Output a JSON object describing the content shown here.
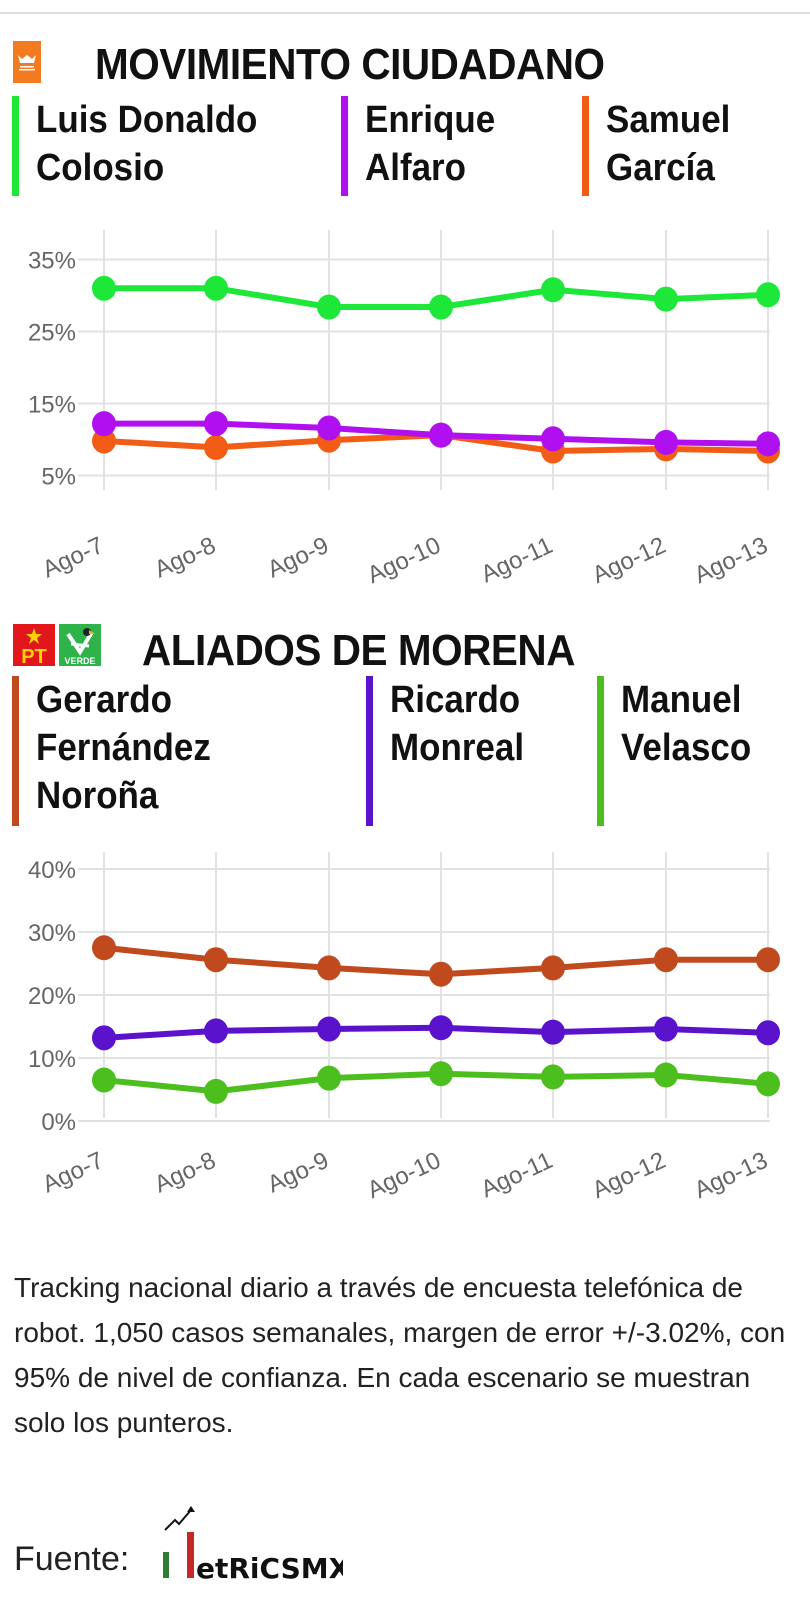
{
  "sections": [
    {
      "title": "MOVIMIENTO CIUDADANO",
      "logo": "movimiento-ciudadano-logo",
      "legend": [
        {
          "label": "Luis Donaldo\nColosio",
          "color": "#1de83a"
        },
        {
          "label": "Enrique\nAlfaro",
          "color": "#b010f0"
        },
        {
          "label": "Samuel\nGarcía",
          "color": "#f25c14"
        }
      ]
    },
    {
      "title": "ALIADOS DE MORENA",
      "logos": [
        "pt-logo",
        "verde-logo"
      ],
      "logo_text": {
        "pt": "PT",
        "verde": "VERDE"
      },
      "legend": [
        {
          "label": "Gerardo\nFernández\nNoroña",
          "color": "#c04a1e"
        },
        {
          "label": "Ricardo\nMonreal",
          "color": "#5a12cc"
        },
        {
          "label": "Manuel\nVelasco",
          "color": "#4cbf1f"
        }
      ]
    }
  ],
  "chart_data": [
    {
      "type": "line",
      "title": "MOVIMIENTO CIUDADANO",
      "xlabel": "",
      "ylabel": "",
      "categories": [
        "Ago-7",
        "Ago-8",
        "Ago-9",
        "Ago-10",
        "Ago-11",
        "Ago-12",
        "Ago-13"
      ],
      "yticks": [
        "35%",
        "25%",
        "15%",
        "5%"
      ],
      "ytick_values": [
        35,
        25,
        15,
        5
      ],
      "ylim": [
        2,
        38
      ],
      "grid": true,
      "legend_position": "top",
      "series": [
        {
          "name": "Luis Donaldo Colosio",
          "color": "#1de83a",
          "values": [
            31.0,
            31.0,
            28.4,
            28.4,
            30.8,
            29.5,
            30.1
          ]
        },
        {
          "name": "Enrique Alfaro",
          "color": "#b010f0",
          "values": [
            12.2,
            12.2,
            11.6,
            10.6,
            10.1,
            9.6,
            9.4
          ]
        },
        {
          "name": "Samuel García",
          "color": "#f25c14",
          "values": [
            9.8,
            8.9,
            9.9,
            10.6,
            8.4,
            8.7,
            8.4
          ]
        }
      ]
    },
    {
      "type": "line",
      "title": "ALIADOS DE MORENA",
      "xlabel": "",
      "ylabel": "",
      "categories": [
        "Ago-7",
        "Ago-8",
        "Ago-9",
        "Ago-10",
        "Ago-11",
        "Ago-12",
        "Ago-13"
      ],
      "yticks": [
        "40%",
        "30%",
        "20%",
        "10%",
        "0%"
      ],
      "ytick_values": [
        40,
        30,
        20,
        10,
        0
      ],
      "ylim": [
        -2,
        40
      ],
      "grid": true,
      "legend_position": "top",
      "series": [
        {
          "name": "Gerardo Fernández Noroña",
          "color": "#c04a1e",
          "values": [
            27.5,
            25.6,
            24.3,
            23.3,
            24.3,
            25.6,
            25.6
          ]
        },
        {
          "name": "Ricardo Monreal",
          "color": "#5a12cc",
          "values": [
            13.2,
            14.3,
            14.6,
            14.8,
            14.1,
            14.6,
            14.0
          ]
        },
        {
          "name": "Manuel Velasco",
          "color": "#4cbf1f",
          "values": [
            6.5,
            4.7,
            6.8,
            7.5,
            7.0,
            7.3,
            5.9
          ]
        }
      ]
    }
  ],
  "footer": {
    "note": "Tracking nacional diario a través de encuesta telefónica de robot. 1,050 casos semanales, margen de error +/-3.02%, con 95% de nivel de confianza. En cada escenario se muestran solo los punteros.",
    "source_label": "Fuente:",
    "brand": "etRiCSMX"
  }
}
